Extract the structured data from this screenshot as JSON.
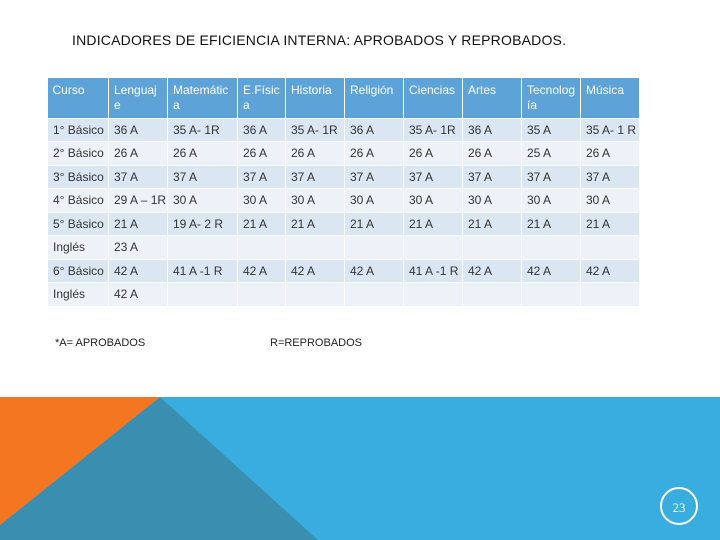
{
  "title": "INDICADORES DE EFICIENCIA INTERNA:  APROBADOS Y  REPROBADOS.",
  "table": {
    "header": [
      "Curso",
      "Lenguaje",
      "Matemática",
      "E.Física",
      "Historia",
      "Religión",
      "Ciencias",
      "Artes",
      "Tecnología",
      "Música"
    ],
    "rows": [
      [
        "1° Básico",
        "36 A",
        "35 A- 1R",
        "36 A",
        "35 A- 1R",
        "36 A",
        "35 A- 1R",
        "36 A",
        "35 A",
        "35 A- 1 R"
      ],
      [
        "2° Básico",
        "26 A",
        "26 A",
        "26 A",
        "26 A",
        "26 A",
        "26 A",
        "26 A",
        "25 A",
        "26 A"
      ],
      [
        "3° Básico",
        "37 A",
        "37 A",
        "37 A",
        "37 A",
        "37 A",
        "37 A",
        "37 A",
        "37 A",
        "37 A"
      ],
      [
        "4° Básico",
        "29 A – 1R",
        "30 A",
        "30 A",
        "30 A",
        "30 A",
        "30 A",
        "30 A",
        "30 A",
        "30 A"
      ],
      [
        "5° Básico",
        "21 A",
        "19 A- 2 R",
        "21 A",
        "21 A",
        "21 A",
        "21 A",
        "21 A",
        "21 A",
        "21 A"
      ],
      [
        "Inglés",
        "23 A"
      ],
      [
        "6° Básico",
        "42 A",
        "41 A -1 R",
        "42 A",
        "42 A",
        "42 A",
        "41 A -1 R",
        "42 A",
        "42 A",
        "42 A"
      ],
      [
        "Inglés",
        "42 A"
      ]
    ]
  },
  "notes": {
    "approved": "*A= APROBADOS",
    "failed": "R=REPROBADOS"
  },
  "page_number": "23"
}
